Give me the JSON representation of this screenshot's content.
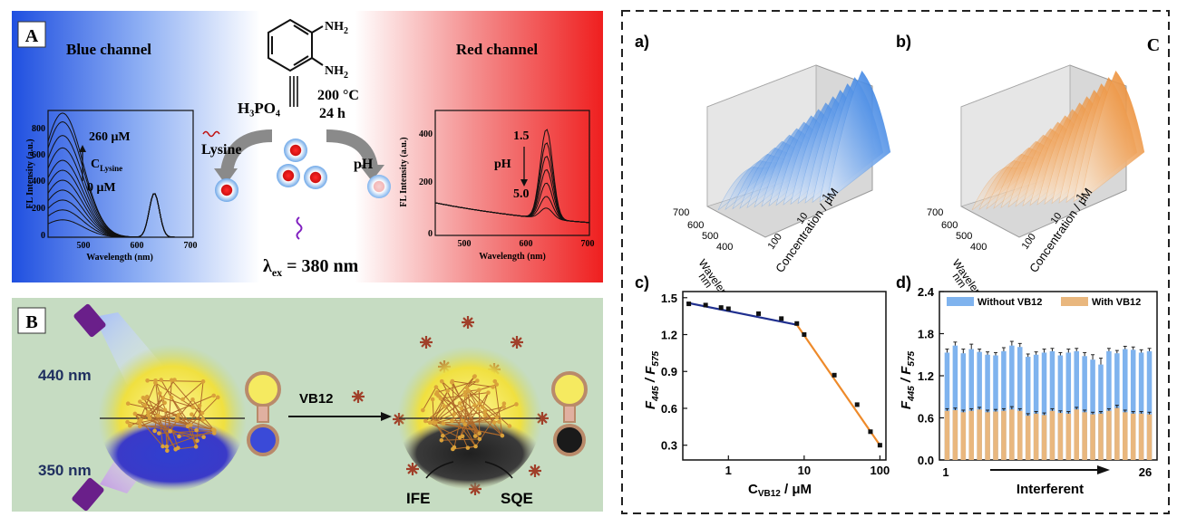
{
  "panel_A": {
    "label": "A",
    "blue_channel_title": "Blue channel",
    "red_channel_title": "Red channel",
    "reagent_nh2_top": "NH",
    "reagent_nh2_bottom": "NH",
    "reagent_sub": "2",
    "acid": "H₃PO₄",
    "temperature": "200 °C",
    "time": "24 h",
    "lysine_label": "Lysine",
    "ph_label": "pH",
    "excitation": "λ",
    "excitation_sub": "ex",
    "excitation_value": " = 380 nm",
    "left_inset": {
      "ylabel": "FL Intensity (a.u.)",
      "xlabel": "Wavelength (nm)",
      "xticks": [
        "500",
        "600",
        "700"
      ],
      "yticks": [
        "0",
        "200",
        "400",
        "600",
        "800"
      ],
      "top_annotation": "260 μM",
      "var_annotation": "C",
      "var_sub": "Lysine",
      "bottom_annotation": "0 μM",
      "colors": {
        "curve": "#111111"
      }
    },
    "right_inset": {
      "ylabel": "FL Intensity (a.u.)",
      "xlabel": "Wavelength (nm)",
      "xticks": [
        "500",
        "600",
        "700"
      ],
      "yticks": [
        "0",
        "200",
        "400"
      ],
      "top_annotation": "1.5",
      "var_annotation": "pH",
      "bottom_annotation": "5.0"
    }
  },
  "panel_B": {
    "label": "B",
    "wavelength_top": "440 nm",
    "wavelength_bottom": "350 nm",
    "arrow_label": "VB12",
    "ife_label": "IFE",
    "sqe_label": "SQE"
  },
  "panel_C": {
    "label": "C",
    "sub_a": "a)",
    "sub_b": "b)",
    "sub_c": "c)",
    "sub_d": "d)",
    "surface_axes": {
      "wavelength_label": "Wavelength /",
      "wavelength_unit": "nm",
      "wavelength_ticks": [
        "700",
        "600",
        "500",
        "400"
      ],
      "concentration_label": "Concentration / μM",
      "concentration_ticks": [
        "1",
        "10",
        "100"
      ]
    },
    "colors": {
      "blue_surface": "#2f7fe0",
      "orange_surface": "#ee8a2a",
      "fit_low": "#1f2f8f",
      "fit_high": "#ee8a2a",
      "bar_without": "#7fb3ee",
      "bar_with": "#e9b77e"
    }
  },
  "chart_data": [
    {
      "type": "scatter",
      "panel": "c",
      "xlabel": "C",
      "xlabel_sub": "VB12",
      "xlabel_unit": " / μM",
      "ylabel_main": "F",
      "ylabel_sub1": "445",
      "ylabel_mid": " / F",
      "ylabel_sub2": "575",
      "x_scale": "log",
      "xlim": [
        0.25,
        120
      ],
      "ylim": [
        0.18,
        1.55
      ],
      "xticks": [
        1,
        10,
        100
      ],
      "xtick_labels": [
        "1",
        "10",
        "100"
      ],
      "yticks": [
        0.3,
        0.6,
        0.9,
        1.2,
        1.5
      ],
      "ytick_labels": [
        "0.3",
        "0.6",
        "0.9",
        "1.2",
        "1.5"
      ],
      "x": [
        0.3,
        0.5,
        0.8,
        1.0,
        2.5,
        5.0,
        8.0,
        10,
        25,
        50,
        75,
        100
      ],
      "y": [
        1.45,
        1.44,
        1.42,
        1.41,
        1.37,
        1.33,
        1.29,
        1.2,
        0.87,
        0.63,
        0.41,
        0.3
      ],
      "fit_low": {
        "x": [
          0.28,
          8.0
        ],
        "y": [
          1.46,
          1.28
        ]
      },
      "fit_high": {
        "x": [
          8.0,
          100
        ],
        "y": [
          1.28,
          0.3
        ]
      }
    },
    {
      "type": "bar",
      "panel": "d",
      "xlabel": "Interferent",
      "ylabel_main": "F",
      "ylabel_sub1": "445",
      "ylabel_mid": " / F",
      "ylabel_sub2": "575",
      "ylim": [
        0,
        2.4
      ],
      "yticks": [
        0.0,
        0.6,
        1.2,
        1.8,
        2.4
      ],
      "ytick_labels": [
        "0.0",
        "0.6",
        "1.2",
        "1.8",
        "2.4"
      ],
      "categories": [
        "1",
        "2",
        "3",
        "4",
        "5",
        "6",
        "7",
        "8",
        "9",
        "10",
        "11",
        "12",
        "13",
        "14",
        "15",
        "16",
        "17",
        "18",
        "19",
        "20",
        "21",
        "22",
        "23",
        "24",
        "25",
        "26"
      ],
      "xtick_labels": {
        "first": "1",
        "last": "26"
      },
      "legend_position": "top",
      "series": [
        {
          "name": "Without VB12",
          "values": [
            1.53,
            1.63,
            1.52,
            1.58,
            1.54,
            1.5,
            1.49,
            1.55,
            1.63,
            1.61,
            1.47,
            1.5,
            1.53,
            1.55,
            1.49,
            1.53,
            1.55,
            1.48,
            1.43,
            1.36,
            1.55,
            1.52,
            1.58,
            1.57,
            1.53,
            1.55
          ],
          "errors": [
            0.05,
            0.05,
            0.06,
            0.07,
            0.04,
            0.04,
            0.04,
            0.05,
            0.06,
            0.05,
            0.04,
            0.04,
            0.05,
            0.04,
            0.04,
            0.05,
            0.04,
            0.05,
            0.07,
            0.09,
            0.04,
            0.04,
            0.04,
            0.04,
            0.04,
            0.04
          ]
        },
        {
          "name": "With VB12",
          "values": [
            0.7,
            0.71,
            0.68,
            0.7,
            0.72,
            0.68,
            0.69,
            0.7,
            0.72,
            0.7,
            0.63,
            0.66,
            0.64,
            0.7,
            0.67,
            0.66,
            0.72,
            0.68,
            0.65,
            0.66,
            0.7,
            0.74,
            0.68,
            0.66,
            0.66,
            0.65
          ],
          "errors": [
            0.03,
            0.03,
            0.03,
            0.03,
            0.03,
            0.03,
            0.03,
            0.03,
            0.04,
            0.03,
            0.03,
            0.03,
            0.03,
            0.03,
            0.03,
            0.03,
            0.03,
            0.03,
            0.03,
            0.03,
            0.03,
            0.04,
            0.03,
            0.03,
            0.03,
            0.03
          ]
        }
      ]
    }
  ]
}
